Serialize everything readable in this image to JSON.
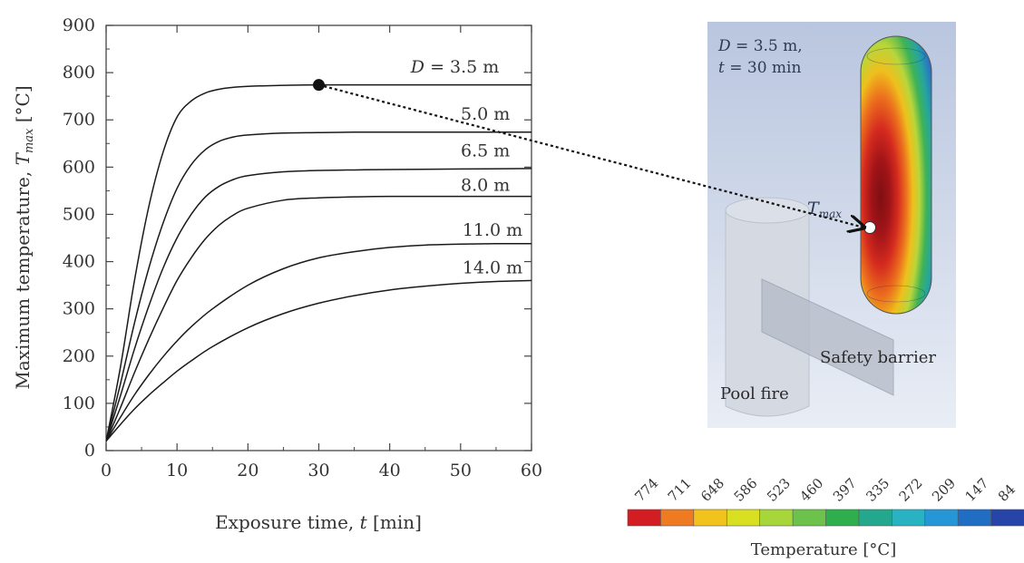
{
  "chart_data": {
    "type": "line",
    "xlabel_main": "Exposure time, ",
    "xlabel_var": "t",
    "xlabel_unit": " [min]",
    "ylabel_main": "Maximum temperature, ",
    "ylabel_var": "T",
    "ylabel_sub": "max",
    "ylabel_unit": " [°C]",
    "xlim": [
      0,
      60
    ],
    "ylim": [
      0,
      900
    ],
    "x_ticks": [
      "0",
      "10",
      "20",
      "30",
      "40",
      "50",
      "60"
    ],
    "y_ticks": [
      "0",
      "100",
      "200",
      "300",
      "400",
      "500",
      "600",
      "700",
      "800",
      "900"
    ],
    "series": [
      {
        "name": "3.5 m",
        "prefix": "D",
        "eq": " = ",
        "label_x": 51.5,
        "label_y": 800,
        "x": [
          0,
          2,
          4,
          6,
          8,
          10,
          12,
          14,
          16,
          18,
          20,
          22,
          25,
          30,
          40,
          50,
          60
        ],
        "y": [
          20,
          175,
          360,
          515,
          630,
          706,
          740,
          757,
          765,
          769,
          771,
          772,
          773,
          774,
          774,
          774,
          774
        ]
      },
      {
        "name": "5.0 m",
        "prefix": "",
        "eq": "",
        "label_x": 53.5,
        "label_y": 700,
        "x": [
          0,
          2,
          4,
          6,
          8,
          10,
          12,
          14,
          16,
          18,
          20,
          25,
          30,
          35,
          40,
          50,
          60
        ],
        "y": [
          20,
          140,
          270,
          385,
          480,
          555,
          605,
          637,
          655,
          664,
          668,
          672,
          673,
          674,
          674,
          674,
          674
        ]
      },
      {
        "name": "6.5 m",
        "prefix": "",
        "eq": "",
        "label_x": 53.5,
        "label_y": 623,
        "x": [
          0,
          2,
          4,
          6,
          8,
          10,
          12,
          14,
          16,
          18,
          20,
          25,
          30,
          35,
          40,
          50,
          60
        ],
        "y": [
          20,
          115,
          215,
          305,
          385,
          450,
          500,
          537,
          560,
          574,
          582,
          590,
          593,
          594,
          595,
          596,
          597
        ]
      },
      {
        "name": "8.0 m",
        "prefix": "",
        "eq": "",
        "label_x": 53.5,
        "label_y": 550,
        "x": [
          0,
          2,
          4,
          6,
          8,
          10,
          12,
          14,
          16,
          18,
          20,
          25,
          30,
          35,
          40,
          50,
          60
        ],
        "y": [
          20,
          90,
          165,
          235,
          300,
          360,
          408,
          448,
          478,
          499,
          513,
          530,
          535,
          537,
          538,
          538,
          538
        ]
      },
      {
        "name": "11.0 m",
        "prefix": "",
        "eq": "",
        "label_x": 54.5,
        "label_y": 455,
        "x": [
          0,
          2,
          4,
          6,
          8,
          10,
          12,
          15,
          20,
          25,
          30,
          35,
          40,
          45,
          50,
          55,
          60
        ],
        "y": [
          20,
          70,
          118,
          160,
          198,
          232,
          262,
          300,
          350,
          385,
          408,
          421,
          430,
          435,
          437,
          438,
          438
        ]
      },
      {
        "name": "14.0 m",
        "prefix": "",
        "eq": "",
        "label_x": 54.5,
        "label_y": 375,
        "x": [
          0,
          2,
          4,
          6,
          8,
          10,
          12,
          15,
          20,
          25,
          30,
          35,
          40,
          45,
          50,
          55,
          60
        ],
        "y": [
          20,
          55,
          88,
          117,
          143,
          168,
          190,
          220,
          260,
          290,
          312,
          328,
          340,
          348,
          354,
          358,
          360
        ]
      }
    ],
    "highlight_point": {
      "x": 30,
      "y": 774
    },
    "grid": false
  },
  "inset": {
    "annotation_line1_var": "D",
    "annotation_line1_rest": " = 3.5 m,",
    "annotation_line2_var": "t",
    "annotation_line2_rest": " = 30 min",
    "tmax_var": "T",
    "tmax_sub": "max",
    "barrier_label": "Safety barrier",
    "pool_label": "Pool fire"
  },
  "colorbar": {
    "title": "Temperature [°C]",
    "ticks": [
      "774",
      "711",
      "648",
      "586",
      "523",
      "460",
      "397",
      "335",
      "272",
      "209",
      "147",
      "84"
    ],
    "colors": [
      "#d21e23",
      "#ee7a22",
      "#f2c21d",
      "#d9e021",
      "#a7d63a",
      "#6cc24a",
      "#2fae4e",
      "#23a88d",
      "#29b2c2",
      "#2596d6",
      "#1f6ec4",
      "#2745a8"
    ]
  }
}
